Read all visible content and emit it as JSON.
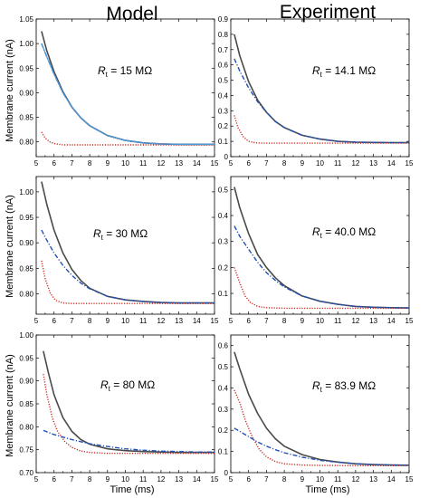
{
  "figure": {
    "col_titles": [
      "Model",
      "Experiment"
    ],
    "ylabel": "Membrane current (nA)",
    "xlabel": "Time (ms)",
    "colors": {
      "total": "#4a4a4a",
      "fast": "#cc2a1e",
      "slow": "#1f4fb8",
      "overlay": "#4a9bd9"
    }
  },
  "chart_data": [
    {
      "type": "line",
      "panel": "model-top",
      "annotation": {
        "symbol": "R",
        "sub": "t",
        "value": " = 15 MΩ"
      },
      "xlim": [
        5,
        15
      ],
      "ylim": [
        0.77,
        1.05
      ],
      "xticks": [
        5,
        6,
        7,
        8,
        9,
        10,
        11,
        12,
        13,
        14,
        15
      ],
      "yticks": [
        0.8,
        0.85,
        0.9,
        0.95,
        1.0,
        1.05
      ],
      "ytick_labels": [
        "0.80",
        "0.85",
        "0.90",
        "0.95",
        "1.00",
        "1.05"
      ],
      "series": [
        {
          "style": "solid",
          "color": "#4a4a4a",
          "x": [
            5.3,
            5.6,
            6.0,
            6.5,
            7.0,
            7.5,
            8.0,
            9.0,
            10.0,
            11.0,
            12.0,
            13.0,
            14.0,
            15.0
          ],
          "y": [
            1.025,
            0.985,
            0.943,
            0.902,
            0.871,
            0.849,
            0.833,
            0.813,
            0.803,
            0.798,
            0.796,
            0.795,
            0.795,
            0.795
          ]
        },
        {
          "style": "dashdot",
          "color": "#1f4fb8",
          "x": [
            5.3,
            5.6,
            6.0,
            6.5,
            7.0,
            7.5,
            8.0,
            9.0,
            10.0,
            11.0,
            12.0,
            13.0,
            14.0,
            15.0
          ],
          "y": [
            1.0,
            0.973,
            0.938,
            0.9,
            0.871,
            0.849,
            0.833,
            0.813,
            0.803,
            0.798,
            0.796,
            0.795,
            0.795,
            0.795
          ]
        },
        {
          "style": "dotted",
          "color": "#cc2a1e",
          "x": [
            5.3,
            5.5,
            5.8,
            6.1,
            6.5,
            7.0,
            8.0,
            9.0,
            11.0,
            13.0,
            15.0
          ],
          "y": [
            0.82,
            0.808,
            0.799,
            0.796,
            0.794,
            0.794,
            0.794,
            0.794,
            0.794,
            0.794,
            0.794
          ]
        }
      ]
    },
    {
      "type": "line",
      "panel": "experiment-top",
      "annotation": {
        "symbol": "R",
        "sub": "t",
        "value": " = 14.1 MΩ"
      },
      "xlim": [
        5,
        15
      ],
      "ylim": [
        0,
        0.9
      ],
      "xticks": [
        5,
        6,
        7,
        8,
        9,
        10,
        11,
        12,
        13,
        14,
        15
      ],
      "yticks": [
        0,
        0.1,
        0.2,
        0.3,
        0.4,
        0.5,
        0.6,
        0.7,
        0.8,
        0.9
      ],
      "ytick_labels": [
        "0",
        "0.1",
        "0.2",
        "0.3",
        "0.4",
        "0.5",
        "0.6",
        "0.7",
        "0.8",
        "0.9"
      ],
      "series": [
        {
          "style": "solid",
          "color": "#4a4a4a",
          "x": [
            5.2,
            5.5,
            6.0,
            6.5,
            7.0,
            7.5,
            8.0,
            9.0,
            10.0,
            11.0,
            12.0,
            13.0,
            14.0,
            15.0
          ],
          "y": [
            0.8,
            0.66,
            0.49,
            0.37,
            0.29,
            0.23,
            0.19,
            0.14,
            0.115,
            0.1,
            0.095,
            0.093,
            0.092,
            0.092
          ]
        },
        {
          "style": "dashdot",
          "color": "#1f4fb8",
          "x": [
            5.2,
            5.5,
            6.0,
            6.5,
            7.0,
            7.5,
            8.0,
            9.0,
            10.0,
            11.0,
            12.0,
            13.0,
            14.0,
            15.0
          ],
          "y": [
            0.64,
            0.56,
            0.45,
            0.36,
            0.29,
            0.23,
            0.19,
            0.14,
            0.115,
            0.1,
            0.095,
            0.093,
            0.092,
            0.092
          ]
        },
        {
          "style": "dotted",
          "color": "#cc2a1e",
          "x": [
            5.2,
            5.4,
            5.7,
            6.0,
            6.4,
            7.0,
            8.0,
            10.0,
            12.0,
            15.0
          ],
          "y": [
            0.27,
            0.19,
            0.13,
            0.1,
            0.09,
            0.088,
            0.088,
            0.088,
            0.088,
            0.088
          ]
        }
      ]
    },
    {
      "type": "line",
      "panel": "model-middle",
      "annotation": {
        "symbol": "R",
        "sub": "t",
        "value": " = 30 MΩ"
      },
      "xlim": [
        5,
        15
      ],
      "ylim": [
        0.76,
        1.03
      ],
      "xticks": [
        5,
        6,
        7,
        8,
        9,
        10,
        11,
        12,
        13,
        14,
        15
      ],
      "yticks": [
        0.8,
        0.85,
        0.9,
        0.95,
        1.0
      ],
      "ytick_labels": [
        "0.80",
        "0.85",
        "0.90",
        "0.95",
        "1.00"
      ],
      "series": [
        {
          "style": "solid",
          "color": "#4a4a4a",
          "x": [
            5.3,
            5.6,
            6.0,
            6.5,
            7.0,
            7.5,
            8.0,
            9.0,
            10.0,
            11.0,
            12.0,
            13.0,
            14.0,
            15.0
          ],
          "y": [
            1.02,
            0.975,
            0.925,
            0.88,
            0.848,
            0.826,
            0.811,
            0.795,
            0.788,
            0.785,
            0.783,
            0.782,
            0.782,
            0.782
          ]
        },
        {
          "style": "dashdot",
          "color": "#1f4fb8",
          "x": [
            5.3,
            5.6,
            6.0,
            6.5,
            7.0,
            7.5,
            8.0,
            9.0,
            10.0,
            11.0,
            12.0,
            13.0,
            14.0,
            15.0
          ],
          "y": [
            0.925,
            0.905,
            0.88,
            0.856,
            0.836,
            0.821,
            0.81,
            0.795,
            0.788,
            0.785,
            0.783,
            0.782,
            0.782,
            0.782
          ]
        },
        {
          "style": "dotted",
          "color": "#cc2a1e",
          "x": [
            5.3,
            5.5,
            5.8,
            6.1,
            6.5,
            7.0,
            8.0,
            9.0,
            11.0,
            13.0,
            15.0
          ],
          "y": [
            0.865,
            0.83,
            0.8,
            0.787,
            0.782,
            0.781,
            0.781,
            0.781,
            0.781,
            0.781,
            0.781
          ]
        }
      ]
    },
    {
      "type": "line",
      "panel": "experiment-middle",
      "annotation": {
        "symbol": "R",
        "sub": "t",
        "value": " = 40.0 MΩ"
      },
      "xlim": [
        5,
        15
      ],
      "ylim": [
        0.02,
        0.55
      ],
      "xticks": [
        5,
        6,
        7,
        8,
        9,
        10,
        11,
        12,
        13,
        14,
        15
      ],
      "yticks": [
        0.1,
        0.2,
        0.3,
        0.4,
        0.5
      ],
      "ytick_labels": [
        "0.1",
        "0.2",
        "0.3",
        "0.4",
        "0.5"
      ],
      "series": [
        {
          "style": "solid",
          "color": "#4a4a4a",
          "x": [
            5.2,
            5.5,
            6.0,
            6.5,
            7.0,
            7.5,
            8.0,
            9.0,
            10.0,
            11.0,
            12.0,
            13.0,
            14.0,
            15.0
          ],
          "y": [
            0.51,
            0.43,
            0.33,
            0.25,
            0.2,
            0.16,
            0.13,
            0.09,
            0.07,
            0.058,
            0.05,
            0.047,
            0.045,
            0.044
          ]
        },
        {
          "style": "dashdot",
          "color": "#1f4fb8",
          "x": [
            5.2,
            5.5,
            6.0,
            6.5,
            7.0,
            7.5,
            8.0,
            9.0,
            10.0,
            11.0,
            12.0,
            13.0,
            14.0,
            15.0
          ],
          "y": [
            0.36,
            0.32,
            0.27,
            0.22,
            0.18,
            0.15,
            0.125,
            0.09,
            0.07,
            0.058,
            0.05,
            0.047,
            0.045,
            0.044
          ]
        },
        {
          "style": "dotted",
          "color": "#cc2a1e",
          "x": [
            5.2,
            5.5,
            5.8,
            6.1,
            6.5,
            7.0,
            8.0,
            9.0,
            11.0,
            13.0,
            15.0
          ],
          "y": [
            0.2,
            0.14,
            0.09,
            0.065,
            0.05,
            0.045,
            0.043,
            0.043,
            0.043,
            0.043,
            0.043
          ]
        }
      ]
    },
    {
      "type": "line",
      "panel": "model-bottom",
      "annotation": {
        "symbol": "R",
        "sub": "t",
        "value": " = 80 MΩ"
      },
      "xlim": [
        5,
        15
      ],
      "ylim": [
        0.7,
        1.0
      ],
      "xticks": [
        5,
        6,
        7,
        8,
        9,
        10,
        11,
        12,
        13,
        14,
        15
      ],
      "yticks": [
        0.7,
        0.75,
        0.8,
        0.85,
        0.9,
        0.95,
        1.0
      ],
      "ytick_labels": [
        "0.70",
        "0.75",
        "0.80",
        "0.85",
        "0.90",
        "0.95",
        "1.00"
      ],
      "series": [
        {
          "style": "solid",
          "color": "#4a4a4a",
          "x": [
            5.4,
            5.7,
            6.0,
            6.5,
            7.0,
            7.5,
            8.0,
            9.0,
            10.0,
            11.0,
            12.0,
            13.0,
            14.0,
            15.0
          ],
          "y": [
            0.965,
            0.915,
            0.87,
            0.82,
            0.79,
            0.772,
            0.762,
            0.752,
            0.748,
            0.746,
            0.745,
            0.744,
            0.744,
            0.744
          ]
        },
        {
          "style": "dashdot",
          "color": "#1f4fb8",
          "x": [
            5.4,
            6.0,
            7.0,
            8.0,
            9.0,
            10.0,
            11.0,
            12.0,
            13.0,
            14.0,
            15.0
          ],
          "y": [
            0.792,
            0.783,
            0.772,
            0.763,
            0.757,
            0.752,
            0.749,
            0.747,
            0.746,
            0.745,
            0.745
          ]
        },
        {
          "style": "dotted",
          "color": "#cc2a1e",
          "x": [
            5.4,
            5.6,
            5.9,
            6.2,
            6.6,
            7.0,
            7.5,
            8.0,
            9.0,
            10.0,
            11.0,
            13.0,
            15.0
          ],
          "y": [
            0.915,
            0.87,
            0.82,
            0.79,
            0.768,
            0.755,
            0.747,
            0.744,
            0.742,
            0.742,
            0.742,
            0.742,
            0.742
          ]
        }
      ]
    },
    {
      "type": "line",
      "panel": "experiment-bottom",
      "annotation": {
        "symbol": "R",
        "sub": "t",
        "value": " = 83.9 MΩ"
      },
      "xlim": [
        5,
        15
      ],
      "ylim": [
        0,
        0.65
      ],
      "xticks": [
        5,
        6,
        7,
        8,
        9,
        10,
        11,
        12,
        13,
        14,
        15
      ],
      "yticks": [
        0,
        0.1,
        0.2,
        0.3,
        0.4,
        0.5,
        0.6
      ],
      "ytick_labels": [
        "0",
        "0.1",
        "0.2",
        "0.3",
        "0.4",
        "0.5",
        "0.6"
      ],
      "series": [
        {
          "style": "solid",
          "color": "#4a4a4a",
          "x": [
            5.2,
            5.5,
            6.0,
            6.5,
            7.0,
            7.5,
            8.0,
            9.0,
            10.0,
            11.0,
            12.0,
            13.0,
            14.0,
            15.0
          ],
          "y": [
            0.57,
            0.49,
            0.37,
            0.28,
            0.21,
            0.16,
            0.125,
            0.085,
            0.062,
            0.05,
            0.042,
            0.038,
            0.036,
            0.035
          ]
        },
        {
          "style": "dashdot",
          "color": "#1f4fb8",
          "x": [
            5.2,
            5.5,
            6.0,
            6.5,
            7.0,
            7.5,
            8.0,
            9.0,
            10.0,
            11.0,
            12.0,
            13.0,
            14.0,
            15.0
          ],
          "y": [
            0.21,
            0.195,
            0.17,
            0.145,
            0.125,
            0.108,
            0.094,
            0.073,
            0.058,
            0.049,
            0.042,
            0.038,
            0.036,
            0.035
          ]
        },
        {
          "style": "dotted",
          "color": "#cc2a1e",
          "x": [
            5.2,
            5.5,
            5.8,
            6.2,
            6.6,
            7.0,
            7.5,
            8.0,
            9.0,
            10.0,
            12.0,
            15.0
          ],
          "y": [
            0.39,
            0.33,
            0.25,
            0.17,
            0.11,
            0.075,
            0.052,
            0.042,
            0.036,
            0.034,
            0.033,
            0.033
          ]
        }
      ]
    }
  ]
}
